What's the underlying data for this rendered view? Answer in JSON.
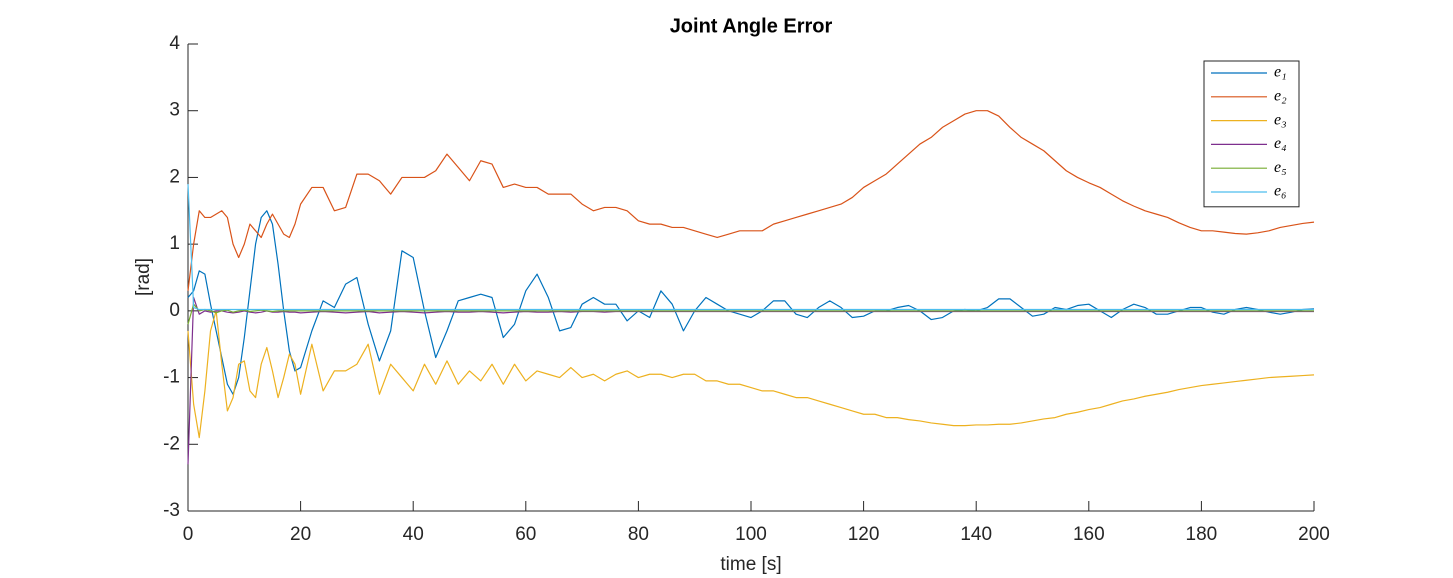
{
  "chart_data": {
    "type": "line",
    "title": "Joint Angle Error",
    "x_label": "time [s]",
    "y_label": "[rad]",
    "xlim": [
      0,
      200
    ],
    "ylim": [
      -3,
      4
    ],
    "xticks": [
      0,
      20,
      40,
      60,
      80,
      100,
      120,
      140,
      160,
      180,
      200
    ],
    "yticks": [
      -3,
      -2,
      -1,
      0,
      1,
      2,
      3,
      4
    ],
    "grid": false,
    "legend": "northeast",
    "x": [
      0,
      1,
      2,
      3,
      4,
      5,
      6,
      7,
      8,
      9,
      10,
      11,
      12,
      13,
      14,
      15,
      16,
      17,
      18,
      19,
      20,
      22,
      24,
      26,
      28,
      30,
      32,
      34,
      36,
      38,
      40,
      42,
      44,
      46,
      48,
      50,
      52,
      54,
      56,
      58,
      60,
      62,
      64,
      66,
      68,
      70,
      72,
      74,
      76,
      78,
      80,
      82,
      84,
      86,
      88,
      90,
      92,
      94,
      96,
      98,
      100,
      102,
      104,
      106,
      108,
      110,
      112,
      114,
      116,
      118,
      120,
      122,
      124,
      126,
      128,
      130,
      132,
      134,
      136,
      138,
      140,
      142,
      144,
      146,
      148,
      150,
      152,
      154,
      156,
      158,
      160,
      162,
      164,
      166,
      168,
      170,
      172,
      174,
      176,
      178,
      180,
      182,
      184,
      186,
      188,
      190,
      192,
      194,
      196,
      198,
      200
    ],
    "series": [
      {
        "name": "e₁",
        "color": "#0072bd",
        "values": [
          0.2,
          0.3,
          0.6,
          0.55,
          0.1,
          -0.3,
          -0.7,
          -1.1,
          -1.25,
          -1.0,
          -0.4,
          0.3,
          1.0,
          1.4,
          1.5,
          1.3,
          0.7,
          0.0,
          -0.6,
          -0.9,
          -0.85,
          -0.3,
          0.15,
          0.05,
          0.4,
          0.5,
          -0.2,
          -0.75,
          -0.3,
          0.9,
          0.8,
          0.0,
          -0.7,
          -0.3,
          0.15,
          0.2,
          0.25,
          0.2,
          -0.4,
          -0.2,
          0.3,
          0.55,
          0.2,
          -0.3,
          -0.25,
          0.1,
          0.2,
          0.1,
          0.1,
          -0.15,
          0.0,
          -0.1,
          0.3,
          0.1,
          -0.3,
          0.0,
          0.2,
          0.1,
          0.0,
          -0.05,
          -0.1,
          0.0,
          0.15,
          0.15,
          -0.05,
          -0.1,
          0.05,
          0.15,
          0.05,
          -0.1,
          -0.08,
          0.0,
          0.0,
          0.05,
          0.08,
          0.0,
          -0.13,
          -0.1,
          0.0,
          0.02,
          0.0,
          0.05,
          0.18,
          0.18,
          0.05,
          -0.08,
          -0.05,
          0.05,
          0.02,
          0.08,
          0.1,
          0.0,
          -0.1,
          0.02,
          0.1,
          0.05,
          -0.05,
          -0.05,
          0.0,
          0.05,
          0.05,
          -0.02,
          -0.05,
          0.02,
          0.05,
          0.02,
          -0.02,
          -0.05,
          -0.02,
          0.02,
          0.03
        ]
      },
      {
        "name": "e₂",
        "color": "#d95319",
        "values": [
          0.3,
          1.0,
          1.5,
          1.4,
          1.4,
          1.45,
          1.5,
          1.4,
          1.0,
          0.8,
          1.0,
          1.3,
          1.2,
          1.1,
          1.3,
          1.45,
          1.3,
          1.15,
          1.1,
          1.3,
          1.6,
          1.85,
          1.85,
          1.5,
          1.55,
          2.05,
          2.05,
          1.95,
          1.75,
          2.0,
          2.0,
          2.0,
          2.1,
          2.35,
          2.15,
          1.95,
          2.25,
          2.2,
          1.85,
          1.9,
          1.85,
          1.85,
          1.75,
          1.75,
          1.75,
          1.6,
          1.5,
          1.55,
          1.55,
          1.5,
          1.35,
          1.3,
          1.3,
          1.25,
          1.25,
          1.2,
          1.15,
          1.1,
          1.15,
          1.2,
          1.2,
          1.2,
          1.3,
          1.35,
          1.4,
          1.45,
          1.5,
          1.55,
          1.6,
          1.7,
          1.85,
          1.95,
          2.05,
          2.2,
          2.35,
          2.5,
          2.6,
          2.75,
          2.85,
          2.95,
          3.0,
          3.0,
          2.92,
          2.75,
          2.6,
          2.5,
          2.4,
          2.25,
          2.1,
          2.0,
          1.92,
          1.85,
          1.75,
          1.65,
          1.57,
          1.5,
          1.45,
          1.4,
          1.32,
          1.25,
          1.2,
          1.2,
          1.18,
          1.16,
          1.15,
          1.17,
          1.2,
          1.25,
          1.28,
          1.31,
          1.33
        ]
      },
      {
        "name": "e₃",
        "color": "#edb120",
        "values": [
          -0.3,
          -1.4,
          -1.9,
          -1.2,
          -0.3,
          0.0,
          -0.8,
          -1.5,
          -1.3,
          -0.8,
          -0.75,
          -1.2,
          -1.3,
          -0.8,
          -0.55,
          -0.9,
          -1.3,
          -1.0,
          -0.65,
          -0.8,
          -1.25,
          -0.5,
          -1.2,
          -0.9,
          -0.9,
          -0.8,
          -0.5,
          -1.25,
          -0.8,
          -1.0,
          -1.2,
          -0.8,
          -1.1,
          -0.75,
          -1.1,
          -0.9,
          -1.05,
          -0.8,
          -1.1,
          -0.8,
          -1.05,
          -0.9,
          -0.95,
          -1.0,
          -0.85,
          -1.0,
          -0.95,
          -1.05,
          -0.95,
          -0.9,
          -1.0,
          -0.95,
          -0.95,
          -1.0,
          -0.95,
          -0.95,
          -1.05,
          -1.05,
          -1.1,
          -1.1,
          -1.15,
          -1.2,
          -1.2,
          -1.25,
          -1.3,
          -1.3,
          -1.35,
          -1.4,
          -1.45,
          -1.5,
          -1.55,
          -1.55,
          -1.6,
          -1.6,
          -1.63,
          -1.65,
          -1.68,
          -1.7,
          -1.72,
          -1.72,
          -1.71,
          -1.71,
          -1.7,
          -1.7,
          -1.68,
          -1.65,
          -1.62,
          -1.6,
          -1.55,
          -1.52,
          -1.48,
          -1.45,
          -1.4,
          -1.35,
          -1.32,
          -1.28,
          -1.25,
          -1.22,
          -1.18,
          -1.15,
          -1.12,
          -1.1,
          -1.08,
          -1.06,
          -1.04,
          -1.02,
          -1.0,
          -0.99,
          -0.98,
          -0.97,
          -0.96
        ]
      },
      {
        "name": "e₄",
        "color": "#7e2f8e",
        "values": [
          -2.3,
          0.2,
          -0.05,
          0.0,
          -0.02,
          0.0,
          0.0,
          -0.02,
          -0.03,
          -0.02,
          0.0,
          -0.02,
          -0.03,
          -0.02,
          0.0,
          -0.02,
          -0.02,
          -0.01,
          -0.02,
          -0.02,
          -0.03,
          -0.02,
          -0.01,
          -0.02,
          -0.03,
          -0.02,
          -0.01,
          -0.03,
          -0.02,
          -0.01,
          -0.02,
          -0.03,
          -0.02,
          -0.01,
          -0.02,
          -0.02,
          -0.01,
          -0.02,
          -0.03,
          -0.02,
          -0.01,
          -0.02,
          -0.02,
          -0.01,
          -0.02,
          -0.01,
          -0.01,
          -0.02,
          -0.01,
          -0.01,
          -0.01,
          -0.01,
          -0.01,
          -0.01,
          -0.01,
          -0.01,
          -0.01,
          -0.01,
          -0.01,
          -0.01,
          -0.01,
          -0.01,
          -0.01,
          -0.01,
          -0.01,
          -0.01,
          -0.01,
          -0.01,
          -0.01,
          -0.01,
          -0.01,
          -0.01,
          -0.01,
          -0.01,
          -0.01,
          -0.01,
          -0.01,
          -0.01,
          -0.01,
          -0.01,
          -0.01,
          -0.01,
          -0.01,
          -0.01,
          -0.01,
          -0.01,
          -0.01,
          -0.01,
          -0.01,
          -0.01,
          -0.01,
          -0.01,
          -0.01,
          -0.01,
          -0.01,
          -0.01,
          -0.01,
          -0.01,
          -0.01,
          -0.01,
          -0.01,
          -0.01,
          -0.01,
          -0.01,
          -0.01,
          -0.01,
          -0.01,
          -0.01,
          -0.01,
          -0.01,
          -0.01
        ]
      },
      {
        "name": "e₅",
        "color": "#77ac30",
        "values": [
          -0.2,
          0.1,
          0.0,
          0.02,
          0.0,
          -0.03,
          0.0,
          0.01,
          -0.02,
          0.0,
          0.01,
          -0.01,
          0.0,
          0.01,
          0.0,
          -0.01,
          0.0,
          0.0,
          0.0,
          0.0,
          0.0,
          0.0,
          0.0,
          0.0,
          0.0,
          0.0,
          0.0,
          0.0,
          0.0,
          0.0,
          0.0,
          0.0,
          0.0,
          0.0,
          0.0,
          0.0,
          0.0,
          0.0,
          0.0,
          0.0,
          0.0,
          0.0,
          0.0,
          0.0,
          0.0,
          0.0,
          0.0,
          0.0,
          0.0,
          0.0,
          0.0,
          0.0,
          0.0,
          0.0,
          0.0,
          0.0,
          0.0,
          0.0,
          0.0,
          0.0,
          0.0,
          0.0,
          0.0,
          0.0,
          0.0,
          0.0,
          0.0,
          0.0,
          0.0,
          0.0,
          0.0,
          0.0,
          0.0,
          0.0,
          0.0,
          0.0,
          0.0,
          0.0,
          0.0,
          0.0,
          0.0,
          0.0,
          0.0,
          0.0,
          0.0,
          0.0,
          0.0,
          0.0,
          0.0,
          0.0,
          0.0,
          0.0,
          0.0,
          0.0,
          0.0,
          0.0,
          0.0,
          0.0,
          0.0,
          0.0,
          0.0,
          0.0,
          0.0,
          0.0,
          0.0,
          0.0,
          0.0,
          0.0,
          0.0,
          0.0,
          0.0
        ]
      },
      {
        "name": "e₆",
        "color": "#4dbeee",
        "values": [
          1.9,
          0.05,
          0.02,
          0.02,
          0.02,
          0.02,
          0.02,
          0.02,
          0.02,
          0.02,
          0.02,
          0.02,
          0.02,
          0.02,
          0.02,
          0.02,
          0.02,
          0.02,
          0.02,
          0.02,
          0.02,
          0.02,
          0.02,
          0.02,
          0.02,
          0.02,
          0.02,
          0.02,
          0.02,
          0.02,
          0.02,
          0.02,
          0.02,
          0.02,
          0.02,
          0.02,
          0.02,
          0.02,
          0.02,
          0.02,
          0.02,
          0.02,
          0.02,
          0.02,
          0.02,
          0.02,
          0.02,
          0.02,
          0.02,
          0.02,
          0.02,
          0.02,
          0.02,
          0.02,
          0.02,
          0.02,
          0.02,
          0.02,
          0.02,
          0.02,
          0.02,
          0.02,
          0.02,
          0.02,
          0.02,
          0.02,
          0.02,
          0.02,
          0.02,
          0.02,
          0.02,
          0.02,
          0.02,
          0.02,
          0.02,
          0.02,
          0.02,
          0.02,
          0.02,
          0.02,
          0.02,
          0.02,
          0.02,
          0.02,
          0.02,
          0.02,
          0.02,
          0.02,
          0.02,
          0.02,
          0.02,
          0.02,
          0.02,
          0.02,
          0.02,
          0.02,
          0.02,
          0.02,
          0.02,
          0.02,
          0.02,
          0.02,
          0.02,
          0.02,
          0.02,
          0.02,
          0.02,
          0.02,
          0.02,
          0.02,
          0.02
        ]
      }
    ]
  }
}
